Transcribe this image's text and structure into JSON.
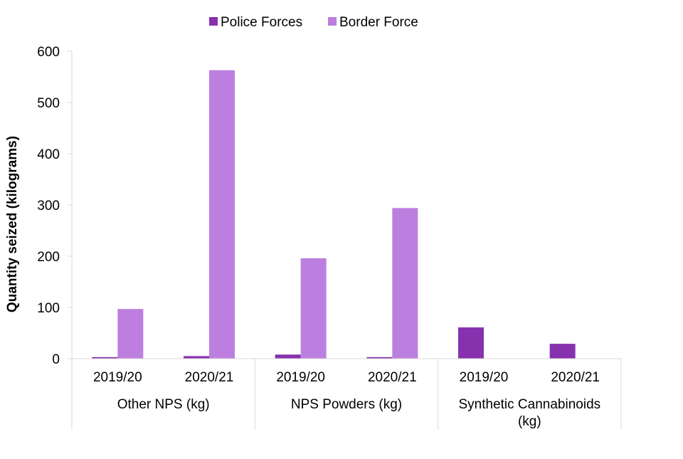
{
  "chart_data": {
    "type": "bar",
    "title": "",
    "xlabel": "",
    "ylabel": "Quantity seized (kilograms)",
    "ylim": [
      0,
      600
    ],
    "yticks": [
      0,
      100,
      200,
      300,
      400,
      500,
      600
    ],
    "grid": false,
    "legend_position": "top-center",
    "groups": [
      {
        "label": "Other NPS (kg)",
        "categories": [
          "2019/20",
          "2020/21"
        ]
      },
      {
        "label": "NPS Powders (kg)",
        "categories": [
          "2019/20",
          "2020/21"
        ]
      },
      {
        "label": "Synthetic Cannabinoids (kg)",
        "label_lines": [
          "Synthetic Cannabinoids",
          "(kg)"
        ],
        "categories": [
          "2019/20",
          "2020/21"
        ]
      }
    ],
    "categories": [
      "Other NPS (kg) 2019/20",
      "Other NPS (kg) 2020/21",
      "NPS Powders (kg) 2019/20",
      "NPS Powders (kg) 2020/21",
      "Synthetic Cannabinoids (kg) 2019/20",
      "Synthetic Cannabinoids (kg) 2020/21"
    ],
    "series": [
      {
        "name": "Police Forces",
        "color": "#8631ad",
        "values": [
          3,
          5,
          8,
          3,
          61,
          29
        ]
      },
      {
        "name": "Border Force",
        "color": "#bc7fdf",
        "values": [
          97,
          563,
          196,
          294,
          0,
          0
        ]
      }
    ]
  }
}
